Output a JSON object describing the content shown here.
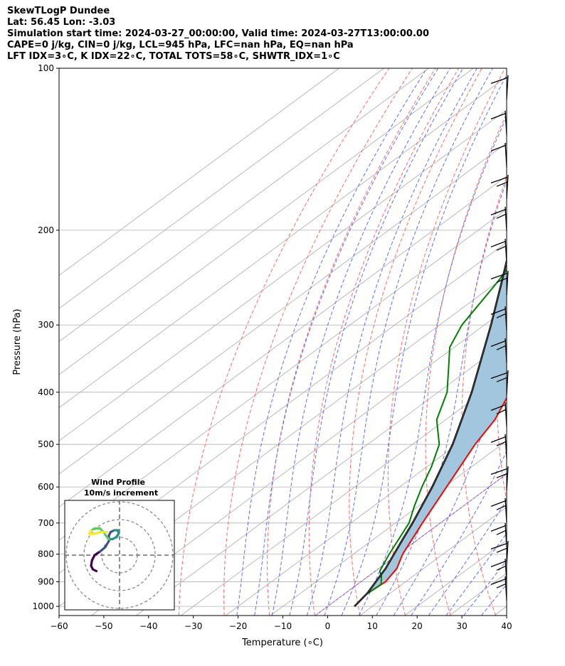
{
  "header": {
    "line1": "SkewTLogP Dundee",
    "line2": "Lat: 56.45   Lon: -3.03",
    "line3": "Simulation start time: 2024-03-27_00:00:00, Valid time: 2024-03-27T13:00:00.00",
    "line4": "CAPE=0 j/kg, CIN=0 j/kg, LCL=945 hPa, LFC=nan hPa, EQ=nan hPa",
    "line5": "LFT IDX=3∘C, K IDX=22∘C, TOTAL TOTS=58∘C, SHWTR_IDX=1∘C"
  },
  "colors": {
    "temperature": "#ff0000",
    "dewpoint": "#008000",
    "parcel": "#000000",
    "cape_fill": "#a3c6df",
    "dry_adiabat": "#ff6666",
    "moist_adiabat": "#5a6cff",
    "mixing_ratio": "#a0a0a0",
    "zero_isotherm": "#9b4fcf",
    "hodograph_colormap": [
      "#440154",
      "#3b528b",
      "#21918c",
      "#5ec962",
      "#fde725"
    ]
  },
  "chart_data": [
    {
      "type": "line",
      "kind": "skewt_logp",
      "xlabel": "Temperature (∘C)",
      "ylabel": "Pressure (hPa)",
      "xlim": [
        -60,
        40
      ],
      "ylim": [
        1040,
        100
      ],
      "y_scale": "log",
      "x_ticks": [
        "−60",
        "−50",
        "−40",
        "−30",
        "−20",
        "−10",
        "0",
        "10",
        "20",
        "30",
        "40"
      ],
      "y_ticks": [
        "100",
        "200",
        "300",
        "400",
        "500",
        "600",
        "700",
        "800",
        "900",
        "1000"
      ],
      "grid": true,
      "series": [
        {
          "role": "temperature",
          "points": [
            [
              1000,
              6
            ],
            [
              950,
              5
            ],
            [
              900,
              5.5
            ],
            [
              850,
              4
            ],
            [
              800,
              1
            ],
            [
              700,
              -4
            ],
            [
              600,
              -9.5
            ],
            [
              500,
              -16
            ],
            [
              450,
              -19
            ],
            [
              400,
              -24
            ],
            [
              350,
              -30
            ],
            [
              300,
              -37
            ],
            [
              250,
              -43.5
            ],
            [
              200,
              -50
            ],
            [
              170,
              -54
            ],
            [
              150,
              -57
            ],
            [
              130,
              -59.5
            ],
            [
              110,
              -61.5
            ],
            [
              100,
              -63
            ]
          ]
        },
        {
          "role": "dewpoint",
          "points": [
            [
              950,
              5
            ],
            [
              910,
              5.3
            ],
            [
              880,
              3
            ],
            [
              860,
              1
            ],
            [
              800,
              -2
            ],
            [
              700,
              -7
            ],
            [
              650,
              -11
            ],
            [
              600,
              -15
            ],
            [
              550,
              -19
            ],
            [
              500,
              -24
            ],
            [
              450,
              -32
            ],
            [
              400,
              -38
            ],
            [
              350,
              -47
            ],
            [
              330,
              -51
            ],
            [
              300,
              -55
            ],
            [
              250,
              -60
            ],
            [
              220,
              -64
            ],
            [
              200,
              -67
            ],
            [
              190,
              -69
            ],
            [
              170,
              -70
            ],
            [
              150,
              -70
            ],
            [
              125,
              -70
            ],
            [
              100,
              -69
            ]
          ]
        },
        {
          "role": "parcel",
          "points": [
            [
              1000,
              6
            ],
            [
              945,
              4.9
            ],
            [
              850,
              1.5
            ],
            [
              750,
              -3.5
            ],
            [
              700,
              -6.2
            ],
            [
              600,
              -12.7
            ],
            [
              500,
              -21
            ],
            [
              400,
              -32.5
            ],
            [
              300,
              -48.5
            ],
            [
              250,
              -59
            ],
            [
              200,
              -72
            ],
            [
              150,
              -87
            ],
            [
              120,
              -96
            ],
            [
              100,
              -103
            ]
          ]
        }
      ],
      "cape_shading": "between temperature and parcel profile"
    },
    {
      "type": "line",
      "kind": "hodograph",
      "title": "Wind Profile",
      "subtitle": "10m/s increment",
      "rings_ms": [
        10,
        20,
        30
      ],
      "points_uv": [
        [
          -13,
          -9
        ],
        [
          -15,
          -8
        ],
        [
          -16,
          -6
        ],
        [
          -15.5,
          -3
        ],
        [
          -14,
          0
        ],
        [
          -11,
          2
        ],
        [
          -8,
          4.5
        ],
        [
          -6,
          8
        ],
        [
          -6,
          11
        ],
        [
          -5,
          13
        ],
        [
          -3,
          14
        ],
        [
          -1,
          14
        ],
        [
          -0.5,
          12
        ],
        [
          -2,
          10
        ],
        [
          -4,
          9
        ],
        [
          -6,
          9
        ],
        [
          -7,
          10
        ],
        [
          -9,
          13
        ],
        [
          -11,
          15
        ],
        [
          -14,
          15
        ],
        [
          -16,
          14
        ],
        [
          -17,
          12
        ],
        [
          -14,
          12
        ],
        [
          -11,
          13
        ],
        [
          -9,
          13
        ],
        [
          -7,
          13
        ]
      ]
    }
  ]
}
